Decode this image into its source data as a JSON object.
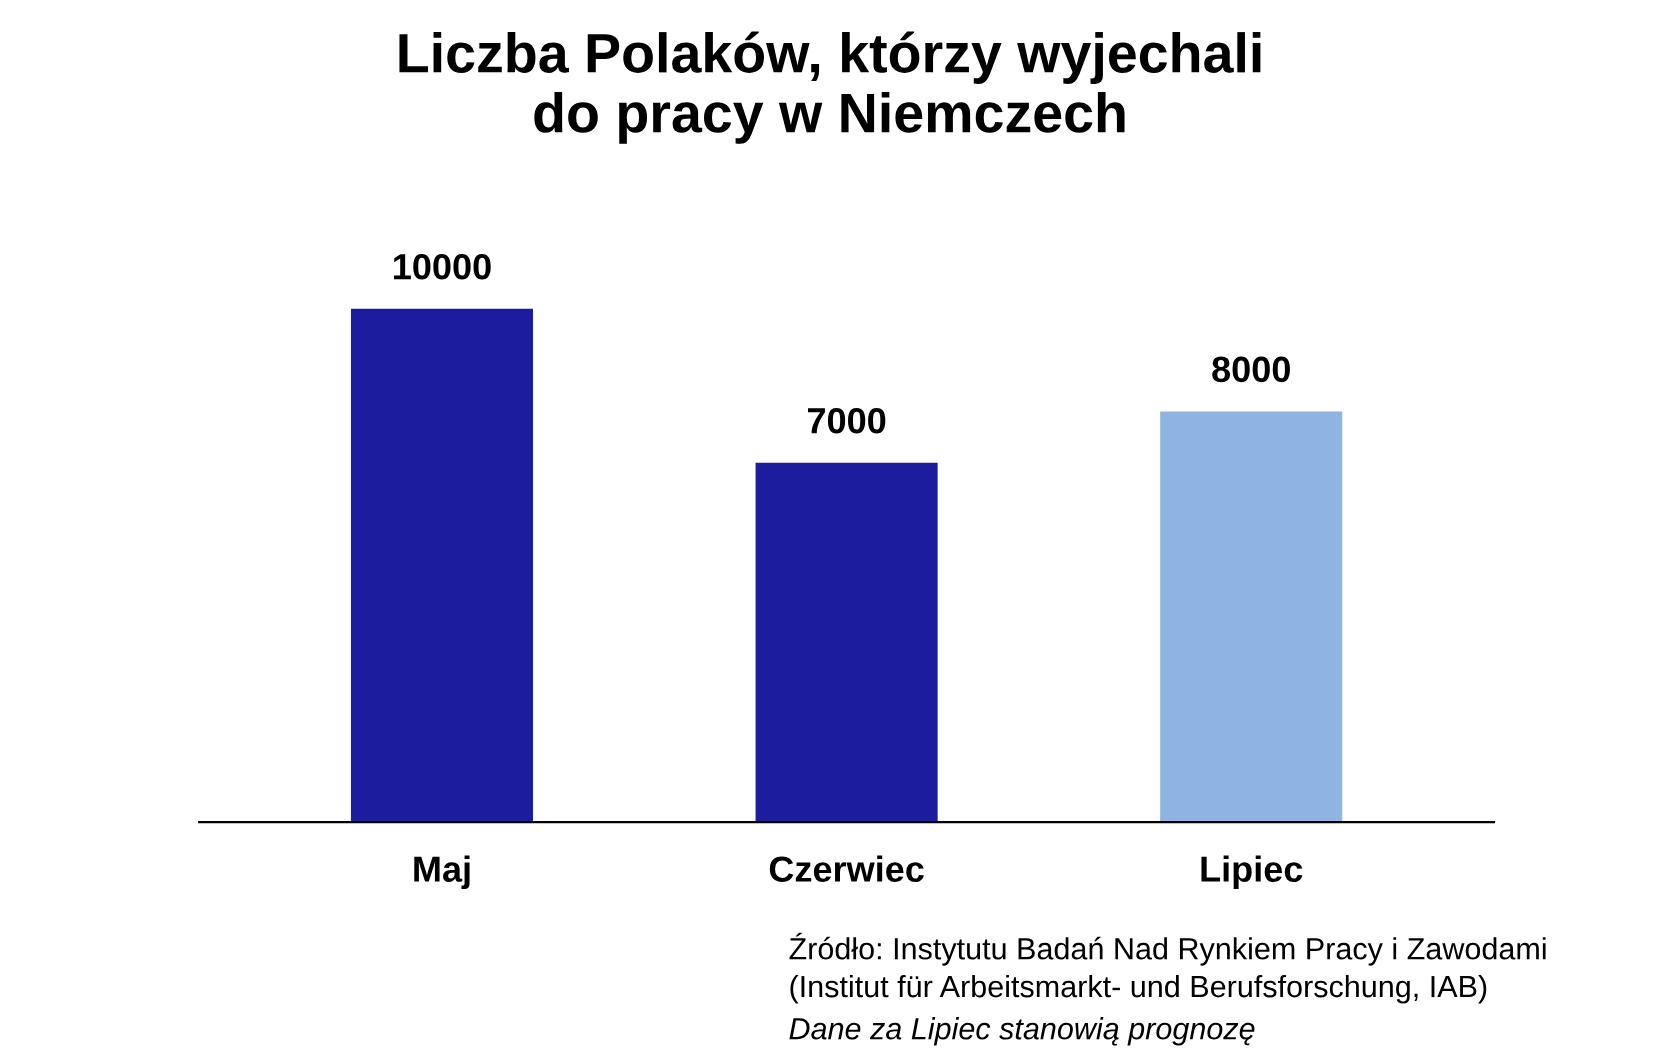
{
  "chart_data": {
    "type": "bar",
    "title": "Liczba Polaków, którzy wyjechali\ndo pracy w Niemczech",
    "categories": [
      "Maj",
      "Czerwiec",
      "Lipiec"
    ],
    "values": [
      10000,
      7000,
      8000
    ],
    "colors": [
      "#1c1c9e",
      "#1c1c9e",
      "#8fb3e2"
    ],
    "data_labels": true,
    "grid": false,
    "legend": false,
    "annotations": [
      "Źródło: Instytutu Badań Nad Rynkiem Pracy i Zawodami",
      "(Institut für Arbeitsmarkt- und Berufsforschung, IAB)",
      "Dane za Lipiec stanowią prognozę"
    ]
  }
}
